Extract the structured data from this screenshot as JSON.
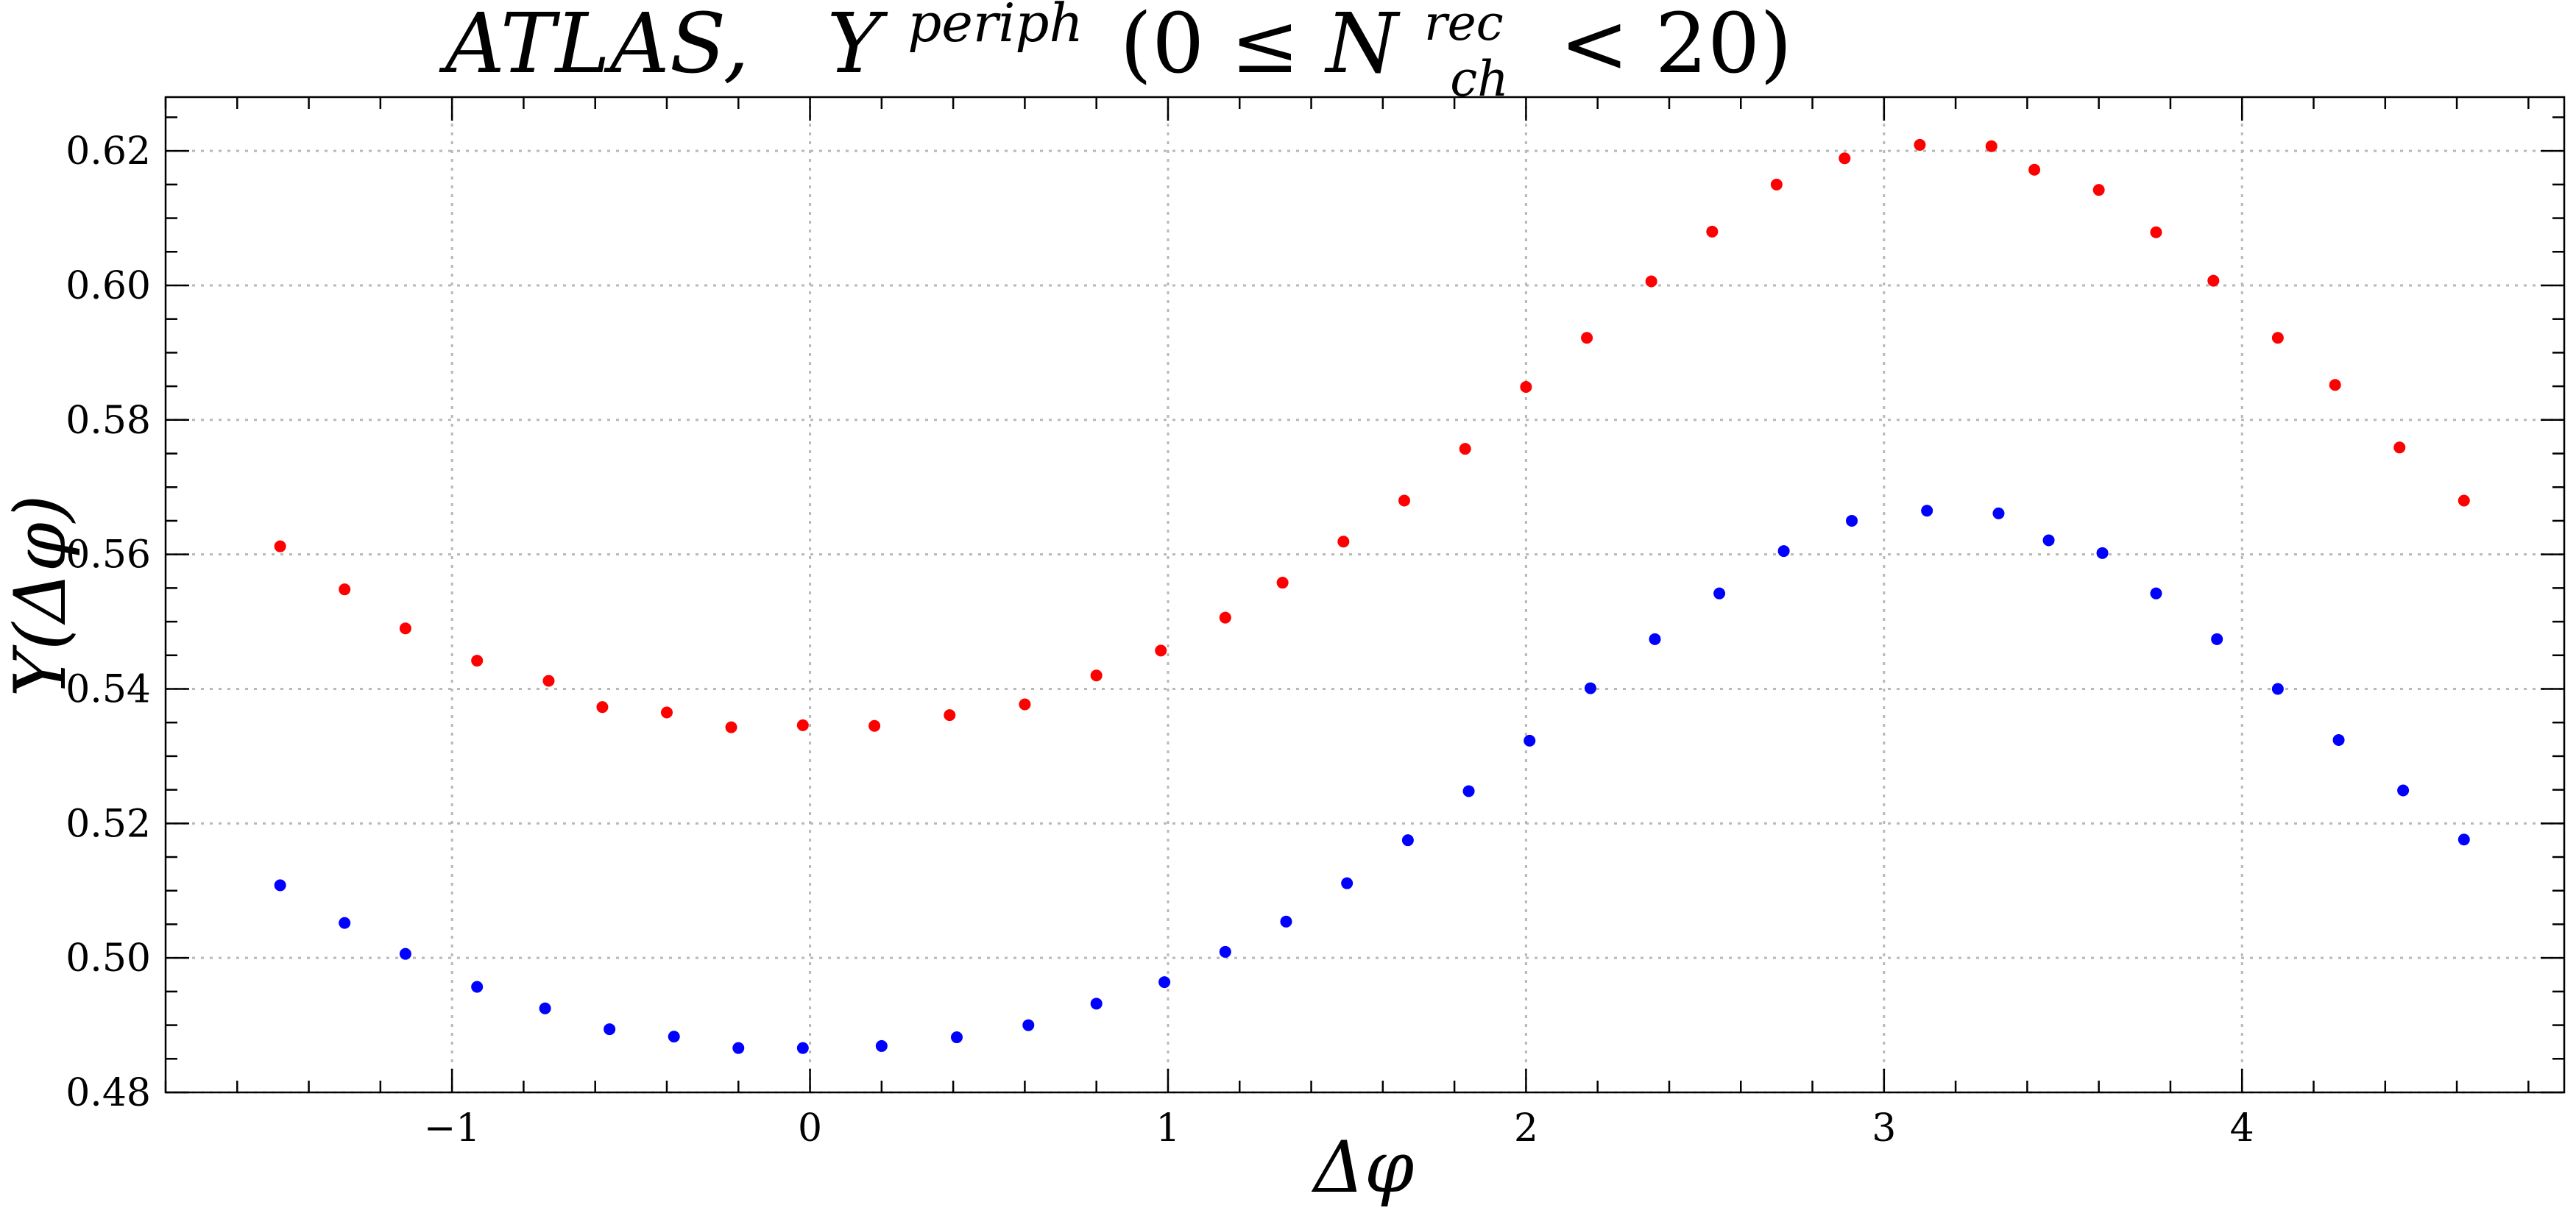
{
  "chart_data": {
    "type": "scatter",
    "title": "ATLAS,    Y^{periph} (0 ≤ N_{ch}^{rec} < 20)",
    "title_parts": {
      "prefix": "ATLAS,",
      "symbol": "Y",
      "superscript": "periph",
      "range_open": "(0 ≤ ",
      "n_symbol": "N",
      "n_superscript": "rec",
      "n_subscript": "ch",
      "range_close": " < 20)"
    },
    "xlabel": "Δφ",
    "ylabel": "Y(Δφ)",
    "xlim": [
      -1.8,
      4.9
    ],
    "ylim": [
      0.48,
      0.628
    ],
    "x_ticks": [
      -1,
      0,
      1,
      2,
      3,
      4
    ],
    "x_tick_labels": [
      "−1",
      "0",
      "1",
      "2",
      "3",
      "4"
    ],
    "y_ticks": [
      0.48,
      0.5,
      0.52,
      0.54,
      0.56,
      0.58,
      0.6,
      0.62
    ],
    "y_tick_labels": [
      "0.48",
      "0.50",
      "0.52",
      "0.54",
      "0.56",
      "0.58",
      "0.60",
      "0.62"
    ],
    "x_minor_step": 0.2,
    "y_minor_step": 0.005,
    "grid": true,
    "series": [
      {
        "color": "#ff0000",
        "x": [
          -1.48,
          -1.3,
          -1.13,
          -0.93,
          -0.73,
          -0.58,
          -0.4,
          -0.22,
          -0.02,
          0.18,
          0.39,
          0.6,
          0.8,
          0.98,
          1.16,
          1.32,
          1.49,
          1.66,
          1.83,
          2.0,
          2.17,
          2.35,
          2.52,
          2.7,
          2.89,
          3.1,
          3.3,
          3.42,
          3.6,
          3.76,
          3.92,
          4.1,
          4.26,
          4.44,
          4.62
        ],
        "y": [
          0.5612,
          0.5548,
          0.549,
          0.5442,
          0.5412,
          0.5373,
          0.5365,
          0.5343,
          0.5346,
          0.5345,
          0.5361,
          0.5377,
          0.542,
          0.5457,
          0.5506,
          0.5558,
          0.5619,
          0.568,
          0.5757,
          0.5849,
          0.5922,
          0.6006,
          0.608,
          0.615,
          0.6189,
          0.6209,
          0.6207,
          0.6172,
          0.6142,
          0.6079,
          0.6007,
          0.5922,
          0.5852,
          0.5759,
          0.568
        ]
      },
      {
        "color": "#0000ff",
        "x": [
          -1.48,
          -1.3,
          -1.13,
          -0.93,
          -0.74,
          -0.56,
          -0.38,
          -0.2,
          -0.02,
          0.2,
          0.41,
          0.61,
          0.8,
          0.99,
          1.16,
          1.33,
          1.5,
          1.67,
          1.84,
          2.01,
          2.18,
          2.36,
          2.54,
          2.72,
          2.91,
          3.12,
          3.32,
          3.46,
          3.61,
          3.76,
          3.93,
          4.1,
          4.27,
          4.45,
          4.62
        ],
        "y": [
          0.5108,
          0.5052,
          0.5006,
          0.4957,
          0.4925,
          0.4894,
          0.4883,
          0.4866,
          0.4866,
          0.4869,
          0.4882,
          0.49,
          0.4932,
          0.4964,
          0.5009,
          0.5054,
          0.5111,
          0.5175,
          0.5248,
          0.5323,
          0.5401,
          0.5474,
          0.5542,
          0.5605,
          0.565,
          0.5665,
          0.5661,
          0.5621,
          0.5602,
          0.5542,
          0.5474,
          0.54,
          0.5324,
          0.5249,
          0.5176
        ]
      }
    ]
  }
}
